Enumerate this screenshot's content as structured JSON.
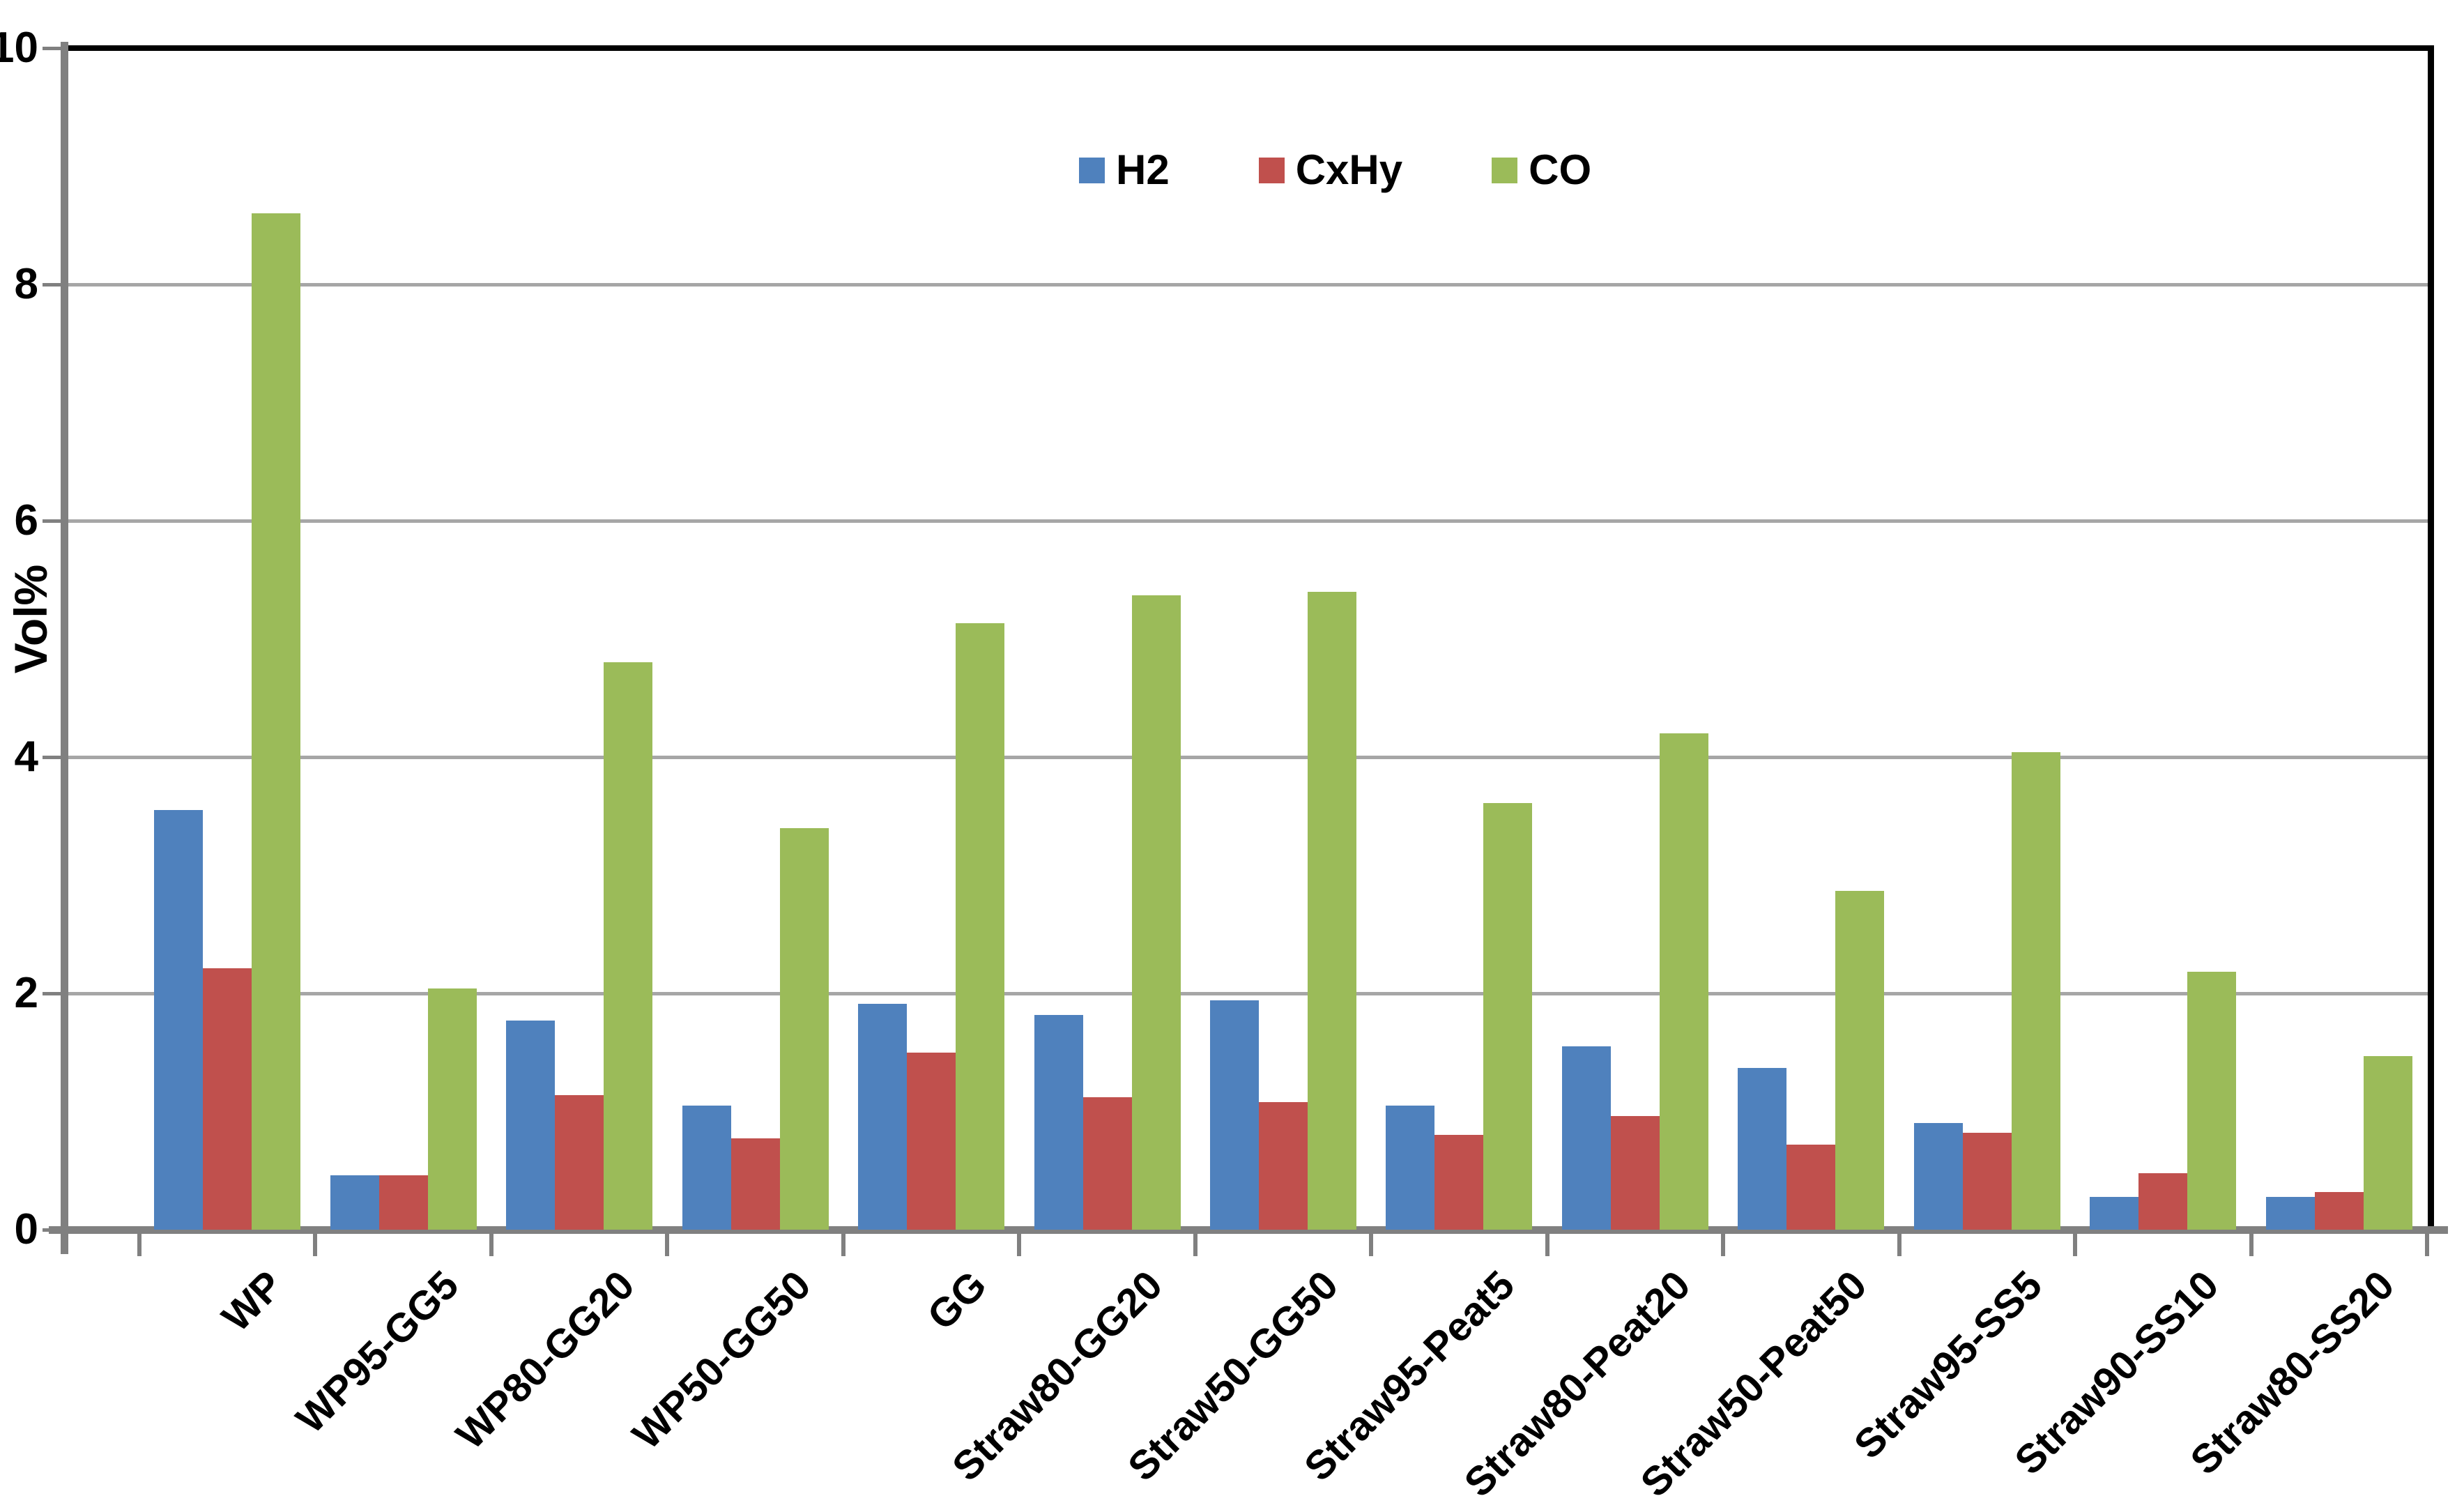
{
  "chart_data": {
    "type": "bar",
    "title": "",
    "xlabel": "",
    "ylabel": "Vol%",
    "ylim": [
      0,
      10
    ],
    "yticks": [
      0,
      2,
      4,
      6,
      8,
      10
    ],
    "ytick_labels": [
      "0",
      "2",
      "4",
      "6",
      "8",
      "10"
    ],
    "grid": true,
    "legend_position": "top-center",
    "categories": [
      "WP",
      "WP95-GG5",
      "WP80-GG20",
      "WP50-GG50",
      "GG",
      "Straw80-GG20",
      "Straw50-GG50",
      "Straw95-Peat5",
      "Straw80-Peat20",
      "Straw50-Peat50",
      "Straw95-SS5",
      "Straw90-SS10",
      "Straw80-SS20"
    ],
    "series": [
      {
        "name": "H2",
        "color": "#4F81BD",
        "values": [
          3.55,
          0.46,
          1.77,
          1.05,
          1.91,
          1.82,
          1.94,
          1.05,
          1.55,
          1.37,
          0.9,
          0.28,
          0.28
        ]
      },
      {
        "name": "CxHy",
        "color": "#C0504D",
        "values": [
          2.21,
          0.46,
          1.14,
          0.77,
          1.5,
          1.12,
          1.08,
          0.8,
          0.96,
          0.72,
          0.82,
          0.48,
          0.32
        ]
      },
      {
        "name": "CO",
        "color": "#9BBB59",
        "values": [
          8.6,
          2.04,
          4.8,
          3.4,
          5.13,
          5.37,
          5.4,
          3.61,
          4.2,
          2.87,
          4.04,
          2.18,
          1.47
        ]
      }
    ],
    "colors": {
      "gridline": "#A6A6A6",
      "axis": "#808080",
      "border": "#000000",
      "background": "#FFFFFF"
    }
  }
}
